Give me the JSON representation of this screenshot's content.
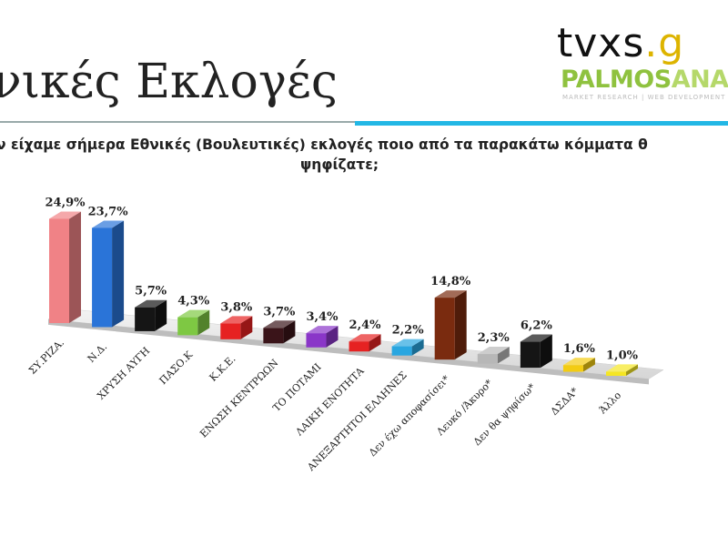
{
  "slide": {
    "title": "νικές Εκλογές",
    "question_line1": "ν είχαμε σήμερα Εθνικές (Βουλευτικές) εκλογές ποιο από τα παρακάτω κόμματα θ",
    "question_line2": "ψηφίζατε;"
  },
  "logos": {
    "tvxs": "tvxs",
    "tvxs_dot": ".g",
    "palmos": "PALMOS",
    "palmos_anal": "ANAL",
    "palmos_sub": "MARKET RESEARCH | WEB DEVELOPMENT"
  },
  "colors": {
    "rule_blue": "#23b7e5"
  },
  "chart_data": {
    "type": "bar",
    "categories": [
      "ΣΥ.ΡΙΖΑ.",
      "Ν.Δ.",
      "ΧΡΥΣΗ ΑΥΓΗ",
      "ΠΑΣΟ.Κ",
      "Κ.Κ.Ε.",
      "ΕΝΩΣΗ ΚΕΝΤΡΩΩΝ",
      "ΤΟ ΠΟΤΑΜΙ",
      "ΛΑΙΚΗ ΕΝΟΤΗΤΑ",
      "ΑΝΕΞΑΡΤΗΤΟΙ ΕΛΛΗΝΕΣ",
      "Δεν έχω αποφασίσει*",
      "Λευκό /Άκυρο*",
      "Δεν θα ψηφίσω*",
      "ΔΣΔΑ*",
      "Άλλο"
    ],
    "values": [
      24.9,
      23.7,
      5.7,
      4.3,
      3.8,
      3.7,
      3.4,
      2.4,
      2.2,
      14.8,
      2.3,
      6.2,
      1.6,
      1.0
    ],
    "labels": [
      "24,9%",
      "23,7%",
      "5,7%",
      "4,3%",
      "3,8%",
      "3,7%",
      "3,4%",
      "2,4%",
      "2,2%",
      "14,8%",
      "2,3%",
      "6,2%",
      "1,6%",
      "1,0%"
    ],
    "colors": [
      "#f08286",
      "#2a74d8",
      "#151515",
      "#7ec843",
      "#e62222",
      "#3a1419",
      "#8a36c8",
      "#e62222",
      "#29a6e0",
      "#7a2b0f",
      "#b7b7b7",
      "#151515",
      "#f3cc12",
      "#f5e623"
    ],
    "ylim": [
      0,
      25
    ]
  }
}
